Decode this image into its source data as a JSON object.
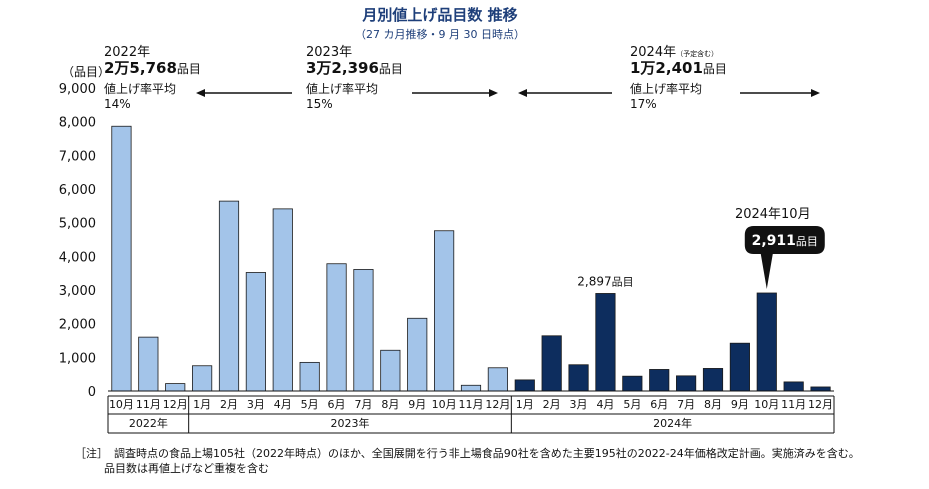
{
  "title": "月別値上げ品目数 推移",
  "subtitle": "（27 カ月推移・9 月 30 日時点）",
  "y_unit": "（品目）",
  "colors": {
    "light_bar": "#a3c4e9",
    "dark_bar": "#0d2d5e",
    "title": "#1e3f7a"
  },
  "periods": [
    {
      "year": "2022年",
      "total_main": "2万5,768",
      "total_unit": "品目",
      "note": "",
      "avg_label": "値上げ率平均",
      "avg_value": "14%"
    },
    {
      "year": "2023年",
      "total_main": "3万2,396",
      "total_unit": "品目",
      "note": "",
      "avg_label": "値上げ率平均",
      "avg_value": "15%"
    },
    {
      "year": "2024年",
      "total_main": "1万2,401",
      "total_unit": "品目",
      "note": "（予定含む）",
      "avg_label": "値上げ率平均",
      "avg_value": "17%"
    }
  ],
  "annotations": {
    "apr2024": {
      "value": "2,897",
      "unit": "品目"
    },
    "oct2024": {
      "caption": "2024年10月",
      "value": "2,911",
      "unit": "品目"
    }
  },
  "footnote": {
    "prefix": "［注］",
    "line1": "調査時点の食品上場105社（2022年時点）のほか、全国展開を行う非上場食品90社を含めた主要195社の2022-24年価格改定計画。実施済みを含む。",
    "line2": "品目数は再値上げなど重複を含む"
  },
  "chart_data": {
    "type": "bar",
    "title": "月別値上げ品目数 推移",
    "subtitle": "（27 カ月推移・9 月 30 日時点）",
    "ylabel": "（品目）",
    "ylim": [
      0,
      9000
    ],
    "yticks": [
      "0",
      "1,000",
      "2,000",
      "3,000",
      "4,000",
      "5,000",
      "6,000",
      "7,000",
      "8,000",
      "9,000"
    ],
    "grid": false,
    "legend": "none",
    "groups": [
      {
        "label": "2022年",
        "categories": [
          "10月",
          "11月",
          "12月"
        ],
        "values": [
          7864,
          1600,
          220
        ]
      },
      {
        "label": "2023年",
        "categories": [
          "1月",
          "2月",
          "3月",
          "4月",
          "5月",
          "6月",
          "7月",
          "8月",
          "9月",
          "10月",
          "11月",
          "12月"
        ],
        "values": [
          750,
          5640,
          3520,
          5410,
          850,
          3780,
          3610,
          1210,
          2160,
          4760,
          170,
          690
        ]
      },
      {
        "label": "2024年",
        "categories": [
          "1月",
          "2月",
          "3月",
          "4月",
          "5月",
          "6月",
          "7月",
          "8月",
          "9月",
          "10月",
          "11月",
          "12月"
        ],
        "values": [
          330,
          1640,
          780,
          2897,
          440,
          640,
          450,
          670,
          1420,
          2911,
          270,
          120
        ]
      }
    ]
  }
}
